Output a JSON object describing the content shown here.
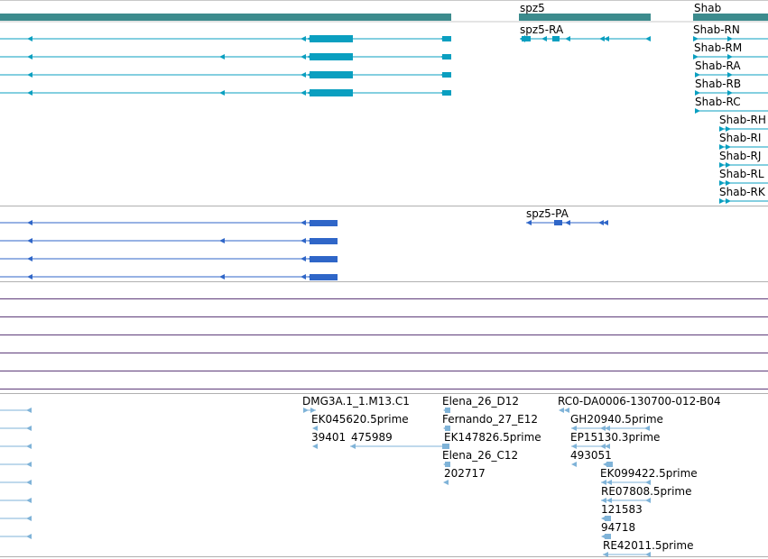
{
  "colors": {
    "gene": "#3c8b8d",
    "transcript": "#0a9fc0",
    "protein": "#2f66c8",
    "track_divider": "#b8b8b8",
    "sequence_line": "#5e3c7a",
    "est": "#7fb3d8"
  },
  "gene_track": {
    "labels": [
      "spz5",
      "Shab"
    ]
  },
  "transcript_track": {
    "labels": [
      "spz5-RA",
      "Shab-RN",
      "Shab-RM",
      "Shab-RA",
      "Shab-RB",
      "Shab-RC",
      "Shab-RH",
      "Shab-RI",
      "Shab-RJ",
      "Shab-RL",
      "Shab-RK"
    ]
  },
  "protein_track": {
    "labels": [
      "spz5-PA"
    ]
  },
  "est_track": {
    "labels": [
      "DMG3A.1_1.M13.C1",
      "EK045620.5prime",
      "39401",
      "475989",
      "Elena_26_D12",
      "Fernando_27_E12",
      "EK147826.5prime",
      "Elena_26_C12",
      "202717",
      "RC0-DA0006-130700-012-B04",
      "GH20940.5prime",
      "EP15130.3prime",
      "493051",
      "EK099422.5prime",
      "RE07808.5prime",
      "121583",
      "94718",
      "RE42011.5prime"
    ]
  }
}
